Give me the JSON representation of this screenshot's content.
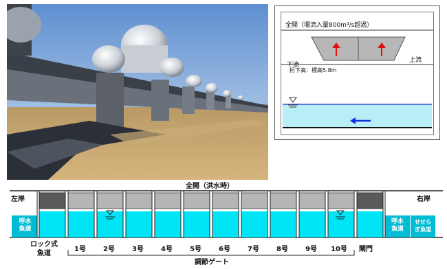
{
  "inset": {
    "title": "全開（堰流入量800m³/s超過）",
    "downstream": "下流",
    "upstream": "上流",
    "clearance": "桁下高：標高5.8m"
  },
  "diagram": {
    "title": "全開（洪水時）",
    "left_bank": "左岸",
    "right_bank": "右岸",
    "left_fishway": "呼水\n魚道",
    "right_fishway": "呼水\n魚道",
    "seseragi_fishway": "せせら\nぎ魚道",
    "lock_fishway": "ロック式\n魚道",
    "gate_labels": [
      "1号",
      "2号",
      "3号",
      "4号",
      "5号",
      "6号",
      "7号",
      "8号",
      "9号",
      "10号"
    ],
    "lock_gate": "閘門",
    "regulating_gates": "調節ゲート"
  },
  "colors": {
    "water": "#00e5f5",
    "gate": "#b5b5b5",
    "lock": "#5a5a5a",
    "fishway": "#00bcd4",
    "arrow_up": "#e01010",
    "arrow_flow": "#1030e0"
  }
}
